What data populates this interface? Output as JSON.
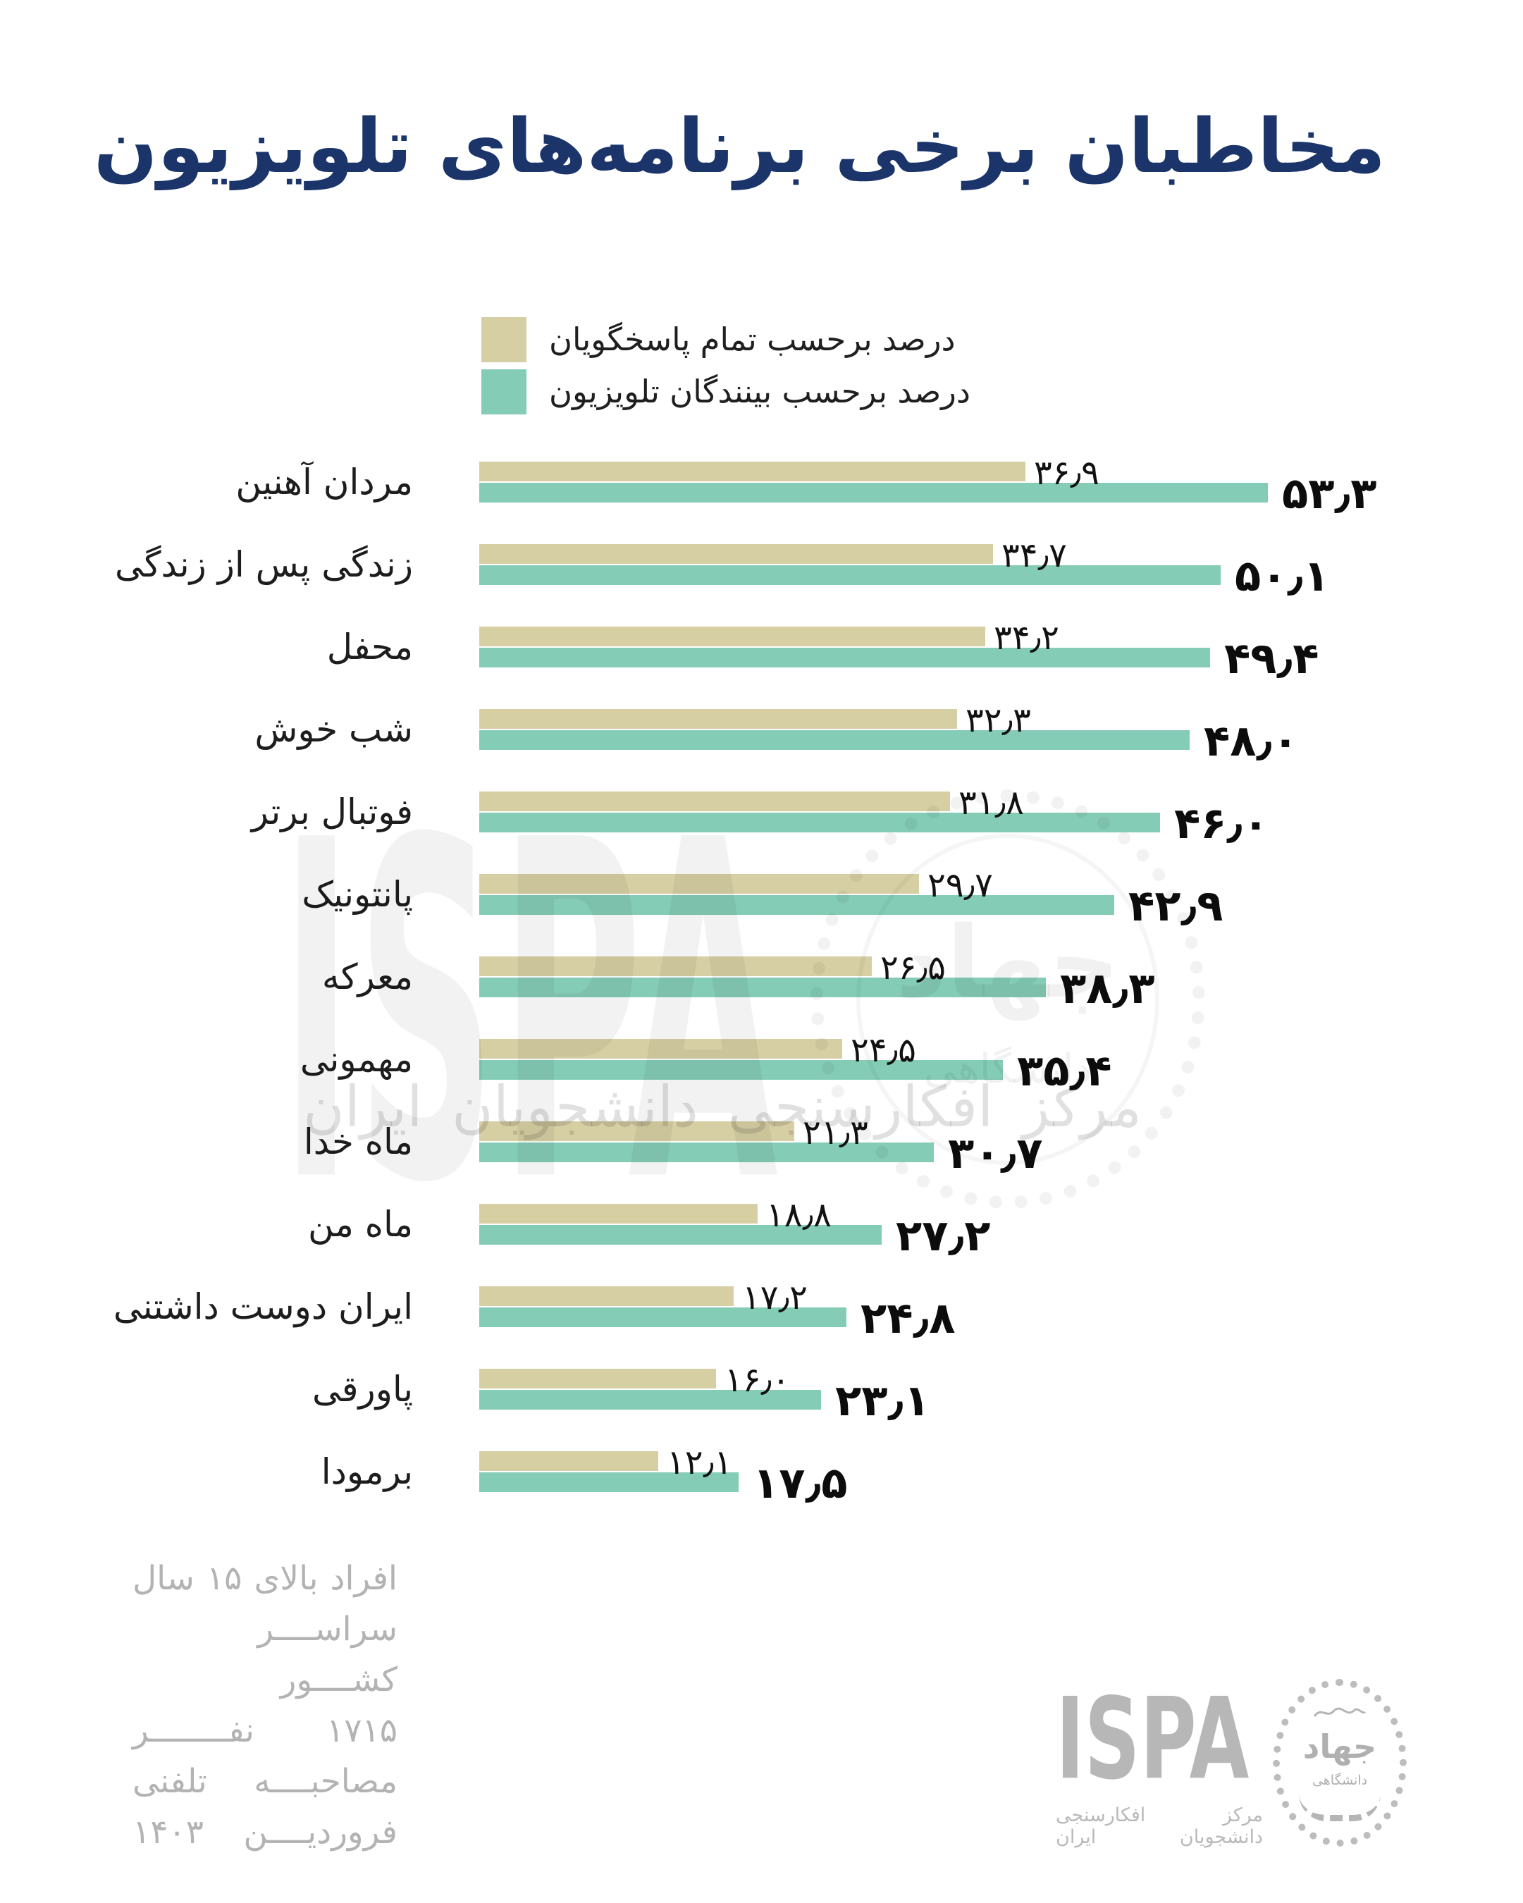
{
  "title": "مخاطبان برخی برنامه‌های تلویزیون",
  "legend": {
    "all_respondents": "درصد برحسب تمام پاسخگویان",
    "tv_viewers": "درصد برحسب بینندگان تلویزیون"
  },
  "colors": {
    "tan": "#d6cfa4",
    "teal": "#84ccb6",
    "title_navy": "#1b356b",
    "footer_gray": "#b3b3b3"
  },
  "chart_data": {
    "type": "bar",
    "orientation": "horizontal",
    "title": "مخاطبان برخی برنامه‌های تلویزیون",
    "xlabel": "",
    "ylabel": "",
    "xlim": [
      0,
      60
    ],
    "grid": false,
    "legend_position": "top",
    "categories": [
      "مردان آهنین",
      "زندگی پس از زندگی",
      "محفل",
      "شب خوش",
      "فوتبال برتر",
      "پانتونیک",
      "معرکه",
      "مهمونی",
      "ماه خدا",
      "ماه من",
      "ایران دوست داشتنی",
      "پاورقی",
      "برمودا"
    ],
    "series": [
      {
        "name": "درصد برحسب تمام پاسخگویان",
        "color_key": "tan",
        "values": [
          36.9,
          34.7,
          34.2,
          32.3,
          31.8,
          29.7,
          26.5,
          24.5,
          21.3,
          18.8,
          17.2,
          16.0,
          12.1
        ],
        "labels": [
          "۳۶٫۹",
          "۳۴٫۷",
          "۳۴٫۲",
          "۳۲٫۳",
          "۳۱٫۸",
          "۲۹٫۷",
          "۲۶٫۵",
          "۲۴٫۵",
          "۲۱٫۳",
          "۱۸٫۸",
          "۱۷٫۲",
          "۱۶٫۰",
          "۱۲٫۱"
        ]
      },
      {
        "name": "درصد برحسب بینندگان تلویزیون",
        "color_key": "teal",
        "values": [
          53.3,
          50.1,
          49.4,
          48.0,
          46.0,
          42.9,
          38.3,
          35.4,
          30.7,
          27.2,
          24.8,
          23.1,
          17.5
        ],
        "labels": [
          "۵۳٫۳",
          "۵۰٫۱",
          "۴۹٫۴",
          "۴۸٫۰",
          "۴۶٫۰",
          "۴۲٫۹",
          "۳۸٫۳",
          "۳۵٫۴",
          "۳۰٫۷",
          "۲۷٫۲",
          "۲۴٫۸",
          "۲۳٫۱",
          "۱۷٫۵"
        ]
      }
    ]
  },
  "watermark": {
    "ispa": "ISPA",
    "subtitle": "مرکز افکارسنجی دانشجویان ایران"
  },
  "footer": {
    "note_lines": [
      "افراد بالای ۱۵ سال",
      "سراســــر کشــــور",
      "۱۷۱۵ نفــــــــر",
      "مصاحبــــه تلفنی",
      "فروردیــــن ۱۴۰۳"
    ],
    "ispa_wordmark": "ISPA",
    "ispa_subtitle": "مرکز افکارسنجی دانشجویان ایران",
    "emblem": {
      "top": "جهاد",
      "bottom": "دانشگاهی"
    }
  }
}
